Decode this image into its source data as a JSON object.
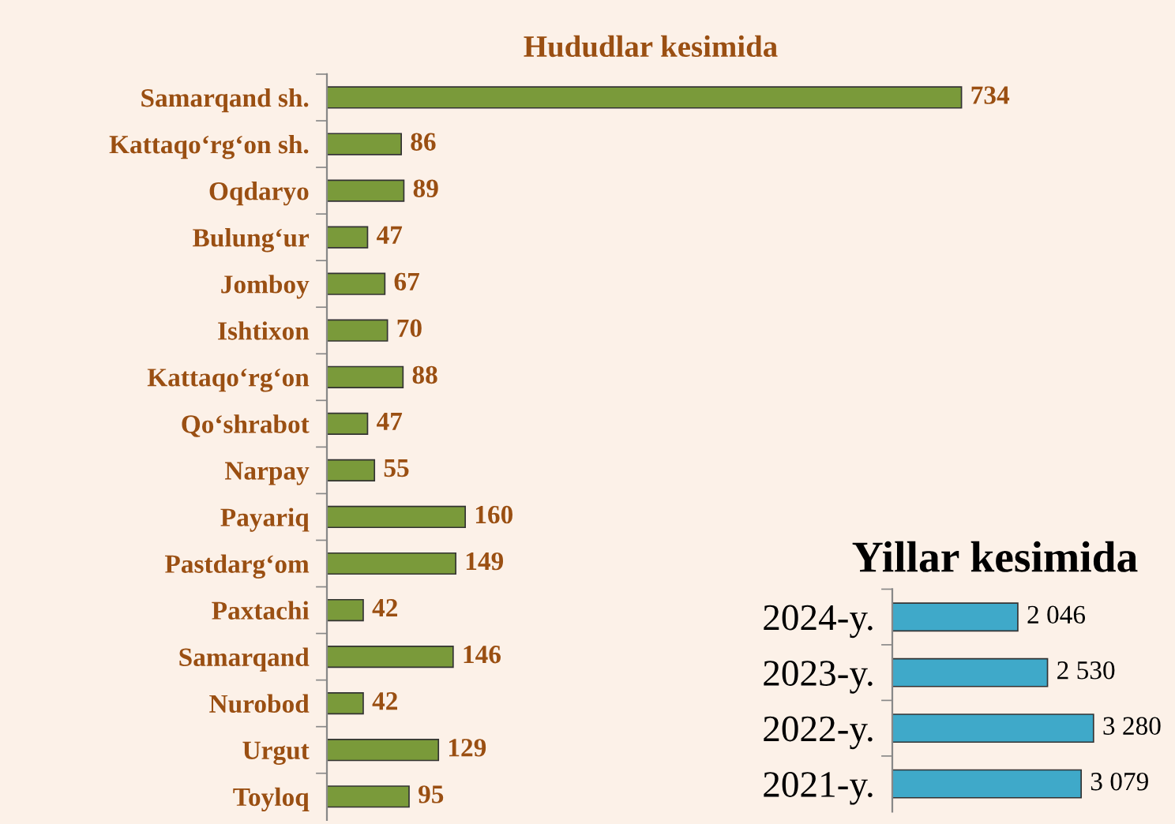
{
  "chart_data": [
    {
      "type": "bar",
      "orientation": "horizontal",
      "title": "Hududlar kesimida",
      "color": "#7a9a3a",
      "data_labels": true,
      "categories": [
        "Samarqand sh.",
        "Kattaqo‘rg‘on sh.",
        "Oqdaryo",
        "Bulung‘ur",
        "Jomboy",
        "Ishtixon",
        "Kattaqo‘rg‘on",
        "Qo‘shrabot",
        "Narpay",
        "Payariq",
        "Pastdarg‘om",
        "Paxtachi",
        "Samarqand",
        "Nurobod",
        "Urgut",
        "Toyloq"
      ],
      "values": [
        734,
        86,
        89,
        47,
        67,
        70,
        88,
        47,
        55,
        160,
        149,
        42,
        146,
        42,
        129,
        95
      ]
    },
    {
      "type": "bar",
      "orientation": "horizontal",
      "title": "Yillar kesimida",
      "color": "#3fa9c9",
      "categories": [
        "2024-y.",
        "2023-y.",
        "2022-y.",
        "2021-y."
      ],
      "values": [
        2046,
        2530,
        3280,
        3079
      ],
      "value_labels": [
        "2 046",
        "2 530",
        "3 280",
        "3 079"
      ]
    }
  ]
}
